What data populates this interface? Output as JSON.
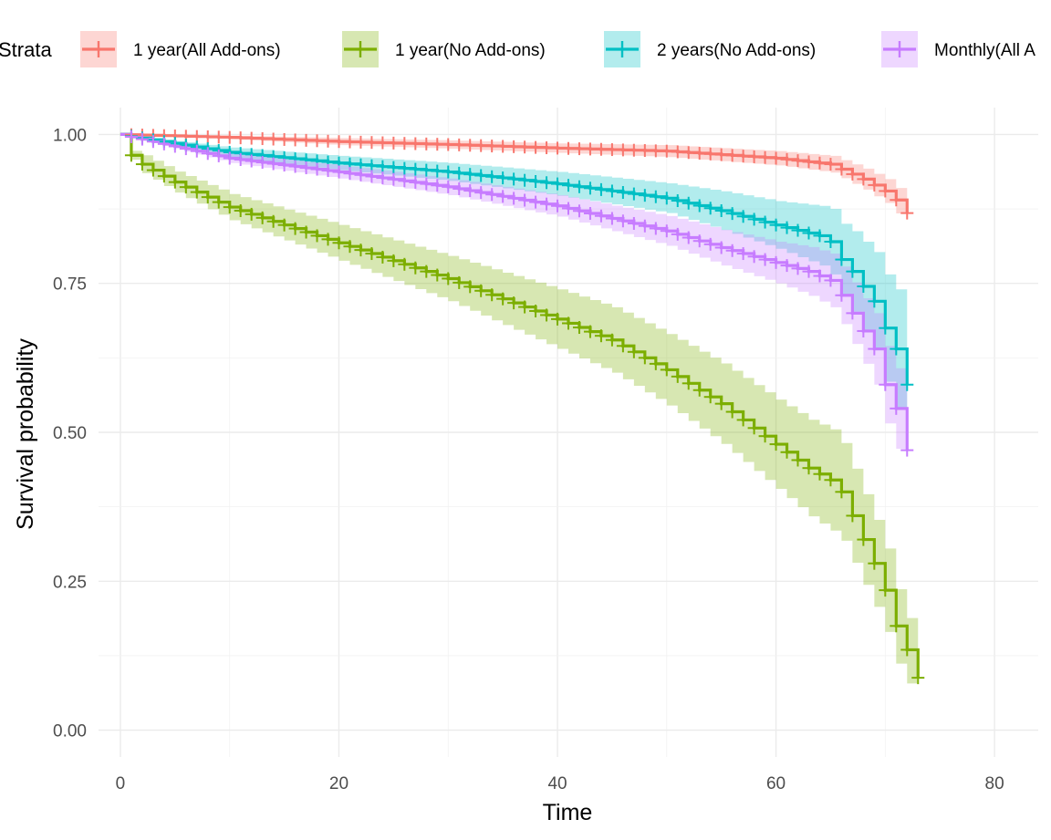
{
  "chart_data": {
    "type": "line",
    "subtype": "kaplan-meier survival curve with confidence bands",
    "xlabel": "Time",
    "ylabel": "Survival probability",
    "xlim": [
      -2,
      84
    ],
    "ylim": [
      -0.045,
      1.045
    ],
    "x_ticks": [
      0,
      20,
      40,
      60,
      80
    ],
    "x_tick_labels": [
      "0",
      "20",
      "40",
      "60",
      "80"
    ],
    "y_ticks": [
      0,
      0.25,
      0.5,
      0.75,
      1.0
    ],
    "y_tick_labels": [
      "0.00",
      "0.25",
      "0.50",
      "0.75",
      "1.00"
    ],
    "grid": true,
    "legend": {
      "title": "Strata",
      "position": "top"
    },
    "series": [
      {
        "name": "1 year(All Add-ons)",
        "color": "#F8766D",
        "knots": [
          [
            0,
            1.0
          ],
          [
            10,
            0.995
          ],
          [
            20,
            0.988
          ],
          [
            30,
            0.983
          ],
          [
            40,
            0.977
          ],
          [
            50,
            0.972
          ],
          [
            60,
            0.96
          ],
          [
            65,
            0.95
          ],
          [
            68,
            0.925
          ],
          [
            70,
            0.905
          ],
          [
            71,
            0.89
          ],
          [
            72,
            0.868
          ]
        ],
        "band": [
          [
            0,
            0,
            0
          ],
          [
            20,
            0.006,
            0.006
          ],
          [
            40,
            0.008,
            0.008
          ],
          [
            60,
            0.012,
            0.012
          ],
          [
            65,
            0.014,
            0.014
          ],
          [
            70,
            0.02,
            0.02
          ],
          [
            72,
            0.025,
            0.02
          ]
        ]
      },
      {
        "name": "1 year(No Add-ons)",
        "color": "#7CAE00",
        "knots": [
          [
            0,
            1.0
          ],
          [
            1,
            0.965
          ],
          [
            2,
            0.95
          ],
          [
            5,
            0.92
          ],
          [
            10,
            0.878
          ],
          [
            20,
            0.818
          ],
          [
            30,
            0.758
          ],
          [
            40,
            0.69
          ],
          [
            45,
            0.655
          ],
          [
            50,
            0.605
          ],
          [
            55,
            0.548
          ],
          [
            60,
            0.48
          ],
          [
            63,
            0.44
          ],
          [
            65,
            0.42
          ],
          [
            66,
            0.4
          ],
          [
            67,
            0.36
          ],
          [
            68,
            0.32
          ],
          [
            69,
            0.28
          ],
          [
            70,
            0.235
          ],
          [
            71,
            0.175
          ],
          [
            72,
            0.135
          ],
          [
            73,
            0.088
          ]
        ],
        "band": [
          [
            0,
            0,
            0
          ],
          [
            2,
            0.015,
            0.015
          ],
          [
            10,
            0.022,
            0.022
          ],
          [
            20,
            0.03,
            0.03
          ],
          [
            30,
            0.038,
            0.038
          ],
          [
            40,
            0.05,
            0.05
          ],
          [
            50,
            0.06,
            0.06
          ],
          [
            60,
            0.075,
            0.075
          ],
          [
            65,
            0.085,
            0.085
          ],
          [
            70,
            0.07,
            0.07
          ],
          [
            73,
            0.05,
            0.045
          ]
        ]
      },
      {
        "name": "2 years(No Add-ons)",
        "color": "#00BFC4",
        "knots": [
          [
            0,
            1.0
          ],
          [
            10,
            0.97
          ],
          [
            20,
            0.952
          ],
          [
            30,
            0.937
          ],
          [
            40,
            0.917
          ],
          [
            50,
            0.893
          ],
          [
            55,
            0.872
          ],
          [
            60,
            0.848
          ],
          [
            64,
            0.83
          ],
          [
            65,
            0.82
          ],
          [
            66,
            0.79
          ],
          [
            67,
            0.77
          ],
          [
            68,
            0.745
          ],
          [
            69,
            0.72
          ],
          [
            70,
            0.675
          ],
          [
            71,
            0.64
          ],
          [
            72,
            0.58
          ]
        ],
        "band": [
          [
            0,
            0,
            0
          ],
          [
            10,
            0.008,
            0.008
          ],
          [
            20,
            0.012,
            0.012
          ],
          [
            30,
            0.015,
            0.015
          ],
          [
            40,
            0.02,
            0.02
          ],
          [
            50,
            0.025,
            0.025
          ],
          [
            60,
            0.04,
            0.04
          ],
          [
            64,
            0.05,
            0.05
          ],
          [
            66,
            0.06,
            0.06
          ],
          [
            68,
            0.075,
            0.075
          ],
          [
            70,
            0.09,
            0.09
          ],
          [
            72,
            0.11,
            0.11
          ]
        ]
      },
      {
        "name": "Monthly(All Add-ons)",
        "legend_label_visible": "Monthly(All A",
        "color": "#C77CFF",
        "knots": [
          [
            0,
            1.0
          ],
          [
            10,
            0.96
          ],
          [
            20,
            0.937
          ],
          [
            30,
            0.912
          ],
          [
            40,
            0.88
          ],
          [
            50,
            0.838
          ],
          [
            55,
            0.81
          ],
          [
            60,
            0.785
          ],
          [
            63,
            0.77
          ],
          [
            65,
            0.755
          ],
          [
            66,
            0.73
          ],
          [
            67,
            0.7
          ],
          [
            68,
            0.67
          ],
          [
            69,
            0.64
          ],
          [
            70,
            0.58
          ],
          [
            71,
            0.54
          ],
          [
            72,
            0.47
          ]
        ],
        "band": [
          [
            0,
            0,
            0
          ],
          [
            10,
            0.008,
            0.008
          ],
          [
            20,
            0.011,
            0.011
          ],
          [
            30,
            0.014,
            0.014
          ],
          [
            40,
            0.018,
            0.018
          ],
          [
            50,
            0.025,
            0.025
          ],
          [
            60,
            0.035,
            0.035
          ],
          [
            65,
            0.045,
            0.045
          ],
          [
            68,
            0.055,
            0.055
          ],
          [
            70,
            0.065,
            0.065
          ],
          [
            72,
            0.07,
            0.07
          ]
        ]
      }
    ]
  }
}
